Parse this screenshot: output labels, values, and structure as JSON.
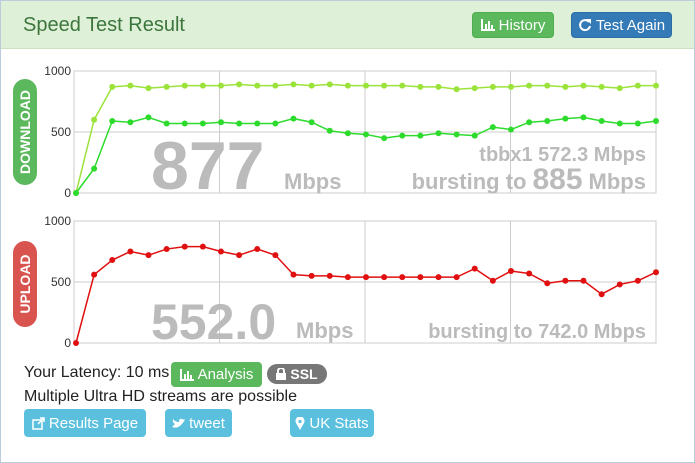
{
  "header": {
    "title": "Speed Test Result",
    "history": "History",
    "test_again": "Test Again"
  },
  "download": {
    "label": "DOWNLOAD",
    "speed": "877",
    "unit": "Mbps",
    "server": "tbbx1 572.3 Mbps",
    "burst_prefix": "bursting to",
    "burst": "885",
    "burst_unit": "Mbps",
    "chart_data": {
      "type": "line",
      "ylim": [
        0,
        1000
      ],
      "yticks": [
        0,
        500,
        1000
      ],
      "grid": true,
      "series": [
        {
          "name": null,
          "color": "#9be33a",
          "values": [
            0,
            600,
            870,
            880,
            860,
            870,
            880,
            880,
            880,
            890,
            880,
            880,
            890,
            880,
            890,
            880,
            880,
            880,
            880,
            870,
            870,
            850,
            860,
            870,
            870,
            880,
            880,
            870,
            880,
            870,
            860,
            880,
            880
          ]
        },
        {
          "name": null,
          "color": "#2ddb2d",
          "values": [
            0,
            200,
            590,
            580,
            620,
            570,
            570,
            570,
            580,
            570,
            570,
            570,
            610,
            580,
            510,
            490,
            480,
            450,
            470,
            470,
            490,
            480,
            470,
            540,
            520,
            580,
            590,
            610,
            620,
            590,
            570,
            570,
            590
          ]
        }
      ]
    }
  },
  "upload": {
    "label": "UPLOAD",
    "speed": "552.0",
    "unit": "Mbps",
    "burst_text": "bursting to 742.0 Mbps",
    "chart_data": {
      "type": "line",
      "ylim": [
        0,
        1000
      ],
      "yticks": [
        0,
        500,
        1000
      ],
      "grid": true,
      "series": [
        {
          "name": null,
          "color": "#e01010",
          "values": [
            0,
            560,
            680,
            750,
            720,
            770,
            790,
            790,
            750,
            720,
            770,
            720,
            560,
            550,
            550,
            540,
            540,
            540,
            540,
            540,
            540,
            540,
            610,
            510,
            590,
            570,
            490,
            510,
            510,
            400,
            480,
            510,
            580
          ]
        }
      ]
    }
  },
  "footer": {
    "latency": "Your Latency: 10 ms",
    "analysis": "Analysis",
    "ssl": "SSL",
    "streams": "Multiple Ultra HD streams are possible",
    "results_page": "Results Page",
    "tweet": "tweet",
    "uk_stats": "UK Stats"
  }
}
